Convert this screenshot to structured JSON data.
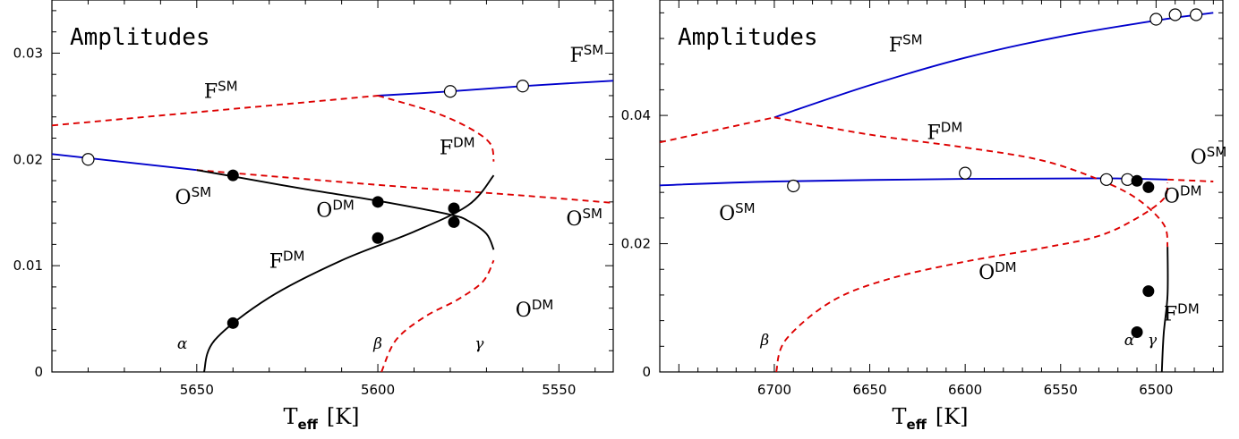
{
  "colors": {
    "stable": "#0000cc",
    "unstable": "#dd0000",
    "dm_stable": "#000000"
  },
  "chart_data": [
    {
      "type": "line",
      "title": "Amplitudes",
      "xlabel": {
        "main": "T",
        "sub": "eff",
        "unit": "[K]"
      },
      "ylabel": "",
      "x_reversed": true,
      "xlim": [
        5690,
        5535
      ],
      "ylim": [
        0,
        0.035
      ],
      "x_ticks": [
        5650,
        5600,
        5550
      ],
      "y_ticks": [
        0,
        0.01,
        0.02,
        0.03
      ],
      "y_tick_labels": [
        "0",
        "0.01",
        "0.02",
        "0.03"
      ],
      "series": [
        {
          "style": "blue-solid",
          "points": [
            [
              5690,
              0.0205
            ],
            [
              5650,
              0.019
            ]
          ]
        },
        {
          "style": "blue-solid",
          "points": [
            [
              5600,
              0.026
            ],
            [
              5580,
              0.0264
            ],
            [
              5560,
              0.0269
            ],
            [
              5535,
              0.0274
            ]
          ]
        },
        {
          "style": "red-dashed",
          "points": [
            [
              5690,
              0.0232
            ],
            [
              5600,
              0.026
            ]
          ]
        },
        {
          "style": "red-dashed",
          "points": [
            [
              5650,
              0.019
            ],
            [
              5600,
              0.0176
            ],
            [
              5560,
              0.0166
            ],
            [
              5535,
              0.0159
            ]
          ]
        },
        {
          "style": "red-dashed",
          "points": [
            [
              5600,
              0.026
            ],
            [
              5585,
              0.0245
            ],
            [
              5575,
              0.023
            ],
            [
              5569,
              0.0215
            ],
            [
              5568,
              0.0198
            ]
          ]
        },
        {
          "style": "red-dashed",
          "points": [
            [
              5599,
              0.0
            ],
            [
              5595,
              0.003
            ],
            [
              5587,
              0.0052
            ],
            [
              5578,
              0.0068
            ],
            [
              5571,
              0.0085
            ],
            [
              5568,
              0.0105
            ]
          ]
        },
        {
          "style": "black-solid",
          "points": [
            [
              5650,
              0.019
            ],
            [
              5640,
              0.0184
            ],
            [
              5620,
              0.0172
            ],
            [
              5600,
              0.0161
            ],
            [
              5580,
              0.0148
            ],
            [
              5575,
              0.0142
            ],
            [
              5570,
              0.013
            ],
            [
              5568,
              0.0115
            ]
          ]
        },
        {
          "style": "black-solid",
          "points": [
            [
              5648,
              0.0
            ],
            [
              5645,
              0.003
            ],
            [
              5630,
              0.007
            ],
            [
              5610,
              0.0105
            ],
            [
              5590,
              0.0132
            ],
            [
              5575,
              0.0157
            ],
            [
              5568,
              0.0185
            ]
          ]
        }
      ],
      "markers": {
        "open": [
          [
            5680,
            0.02
          ],
          [
            5580,
            0.0264
          ],
          [
            5560,
            0.0269
          ]
        ],
        "filled": [
          [
            5640,
            0.0185
          ],
          [
            5600,
            0.016
          ],
          [
            5579,
            0.0154
          ],
          [
            5579,
            0.0141
          ],
          [
            5600,
            0.0126
          ],
          [
            5640,
            0.0046
          ]
        ]
      },
      "annotations": [
        {
          "base": "F",
          "sup": "SM",
          "x": 5648,
          "y": 0.0258
        },
        {
          "base": "F",
          "sup": "SM",
          "x": 5547,
          "y": 0.0292
        },
        {
          "base": "O",
          "sup": "SM",
          "x": 5656,
          "y": 0.0158
        },
        {
          "base": "O",
          "sup": "SM",
          "x": 5548,
          "y": 0.0138
        },
        {
          "base": "F",
          "sup": "DM",
          "x": 5583,
          "y": 0.0205
        },
        {
          "base": "O",
          "sup": "DM",
          "x": 5617,
          "y": 0.0146
        },
        {
          "base": "F",
          "sup": "DM",
          "x": 5630,
          "y": 0.0098
        },
        {
          "base": "O",
          "sup": "DM",
          "x": 5562,
          "y": 0.0052
        }
      ],
      "greek": [
        {
          "text": "α",
          "x": 5654,
          "y": 0.0022
        },
        {
          "text": "β",
          "x": 5600,
          "y": 0.0022
        },
        {
          "text": "γ",
          "x": 5572,
          "y": 0.0022
        }
      ]
    },
    {
      "type": "line",
      "title": "Amplitudes",
      "xlabel": {
        "main": "T",
        "sub": "eff",
        "unit": "[K]"
      },
      "ylabel": "",
      "x_reversed": true,
      "xlim": [
        6760,
        6465
      ],
      "ylim": [
        0,
        0.058
      ],
      "x_ticks": [
        6700,
        6650,
        6600,
        6550,
        6500
      ],
      "y_ticks": [
        0,
        0.02,
        0.04
      ],
      "y_tick_labels": [
        "0",
        "0.02",
        "0.04"
      ],
      "series": [
        {
          "style": "blue-solid",
          "points": [
            [
              6700,
              0.0397
            ],
            [
              6650,
              0.0447
            ],
            [
              6600,
              0.049
            ],
            [
              6550,
              0.0523
            ],
            [
              6500,
              0.0548
            ],
            [
              6470,
              0.056
            ]
          ]
        },
        {
          "style": "blue-solid",
          "points": [
            [
              6760,
              0.0291
            ],
            [
              6700,
              0.0297
            ],
            [
              6600,
              0.0301
            ],
            [
              6530,
              0.0302
            ],
            [
              6494,
              0.03
            ]
          ]
        },
        {
          "style": "red-dashed",
          "points": [
            [
              6760,
              0.0358
            ],
            [
              6700,
              0.0397
            ]
          ]
        },
        {
          "style": "red-dashed",
          "points": [
            [
              6700,
              0.0397
            ],
            [
              6650,
              0.037
            ],
            [
              6600,
              0.035
            ],
            [
              6560,
              0.033
            ],
            [
              6530,
              0.03
            ],
            [
              6510,
              0.027
            ],
            [
              6496,
              0.023
            ],
            [
              6494,
              0.0195
            ]
          ]
        },
        {
          "style": "red-dashed",
          "points": [
            [
              6494,
              0.03
            ],
            [
              6470,
              0.0297
            ]
          ]
        },
        {
          "style": "red-dashed",
          "points": [
            [
              6699,
              0.0
            ],
            [
              6694,
              0.005
            ],
            [
              6670,
              0.011
            ],
            [
              6640,
              0.0145
            ],
            [
              6600,
              0.0172
            ],
            [
              6560,
              0.0193
            ],
            [
              6530,
              0.0212
            ],
            [
              6510,
              0.024
            ],
            [
              6496,
              0.027
            ],
            [
              6494,
              0.0295
            ]
          ]
        },
        {
          "style": "black-solid",
          "points": [
            [
              6497,
              0.0
            ],
            [
              6496,
              0.006
            ],
            [
              6494,
              0.012
            ],
            [
              6494,
              0.0195
            ]
          ]
        }
      ],
      "markers": {
        "open": [
          [
            6690,
            0.029
          ],
          [
            6600,
            0.031
          ],
          [
            6526,
            0.03
          ],
          [
            6515,
            0.03
          ],
          [
            6500,
            0.055
          ],
          [
            6490,
            0.0557
          ],
          [
            6479,
            0.0557
          ]
        ],
        "filled": [
          [
            6510,
            0.0298
          ],
          [
            6504,
            0.0288
          ],
          [
            6504,
            0.0126
          ],
          [
            6510,
            0.0062
          ]
        ]
      },
      "annotations": [
        {
          "base": "F",
          "sup": "SM",
          "x": 6640,
          "y": 0.05
        },
        {
          "base": "F",
          "sup": "DM",
          "x": 6620,
          "y": 0.0363
        },
        {
          "base": "O",
          "sup": "SM",
          "x": 6482,
          "y": 0.0325
        },
        {
          "base": "O",
          "sup": "SM",
          "x": 6729,
          "y": 0.0237
        },
        {
          "base": "O",
          "sup": "DM",
          "x": 6496,
          "y": 0.0264
        },
        {
          "base": "O",
          "sup": "DM",
          "x": 6593,
          "y": 0.0145
        },
        {
          "base": "F",
          "sup": "DM",
          "x": 6496,
          "y": 0.008
        }
      ],
      "greek": [
        {
          "text": "β",
          "x": 6705,
          "y": 0.0042
        },
        {
          "text": "α",
          "x": 6514,
          "y": 0.0042
        },
        {
          "text": "γ",
          "x": 6502,
          "y": 0.0042
        }
      ]
    }
  ]
}
